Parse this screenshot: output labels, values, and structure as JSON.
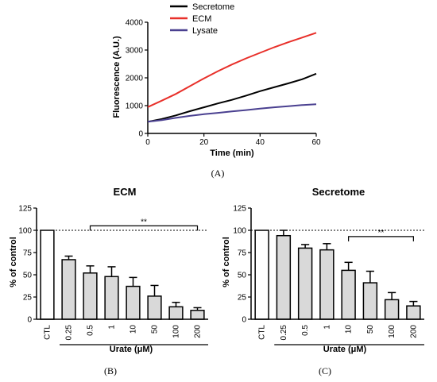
{
  "chart_data": [
    {
      "type": "line",
      "panel_label": "(A)",
      "xlabel": "Time (min)",
      "ylabel": "Fluorescence (A.U.)",
      "xlim": [
        0,
        60
      ],
      "ylim": [
        0,
        4000
      ],
      "xticks": [
        0,
        20,
        40,
        60
      ],
      "yticks": [
        0,
        1000,
        2000,
        3000,
        4000
      ],
      "legend_position": "top-left",
      "series": [
        {
          "name": "Secretome",
          "color": "#000000",
          "x": [
            0,
            5,
            10,
            15,
            20,
            25,
            30,
            35,
            40,
            45,
            50,
            55,
            60
          ],
          "y": [
            420,
            520,
            650,
            800,
            940,
            1080,
            1210,
            1360,
            1520,
            1660,
            1800,
            1950,
            2150
          ]
        },
        {
          "name": "ECM",
          "color": "#e8302a",
          "x": [
            0,
            5,
            10,
            15,
            20,
            25,
            30,
            35,
            40,
            45,
            50,
            55,
            60
          ],
          "y": [
            950,
            1180,
            1420,
            1700,
            1980,
            2240,
            2480,
            2700,
            2900,
            3100,
            3280,
            3450,
            3620
          ]
        },
        {
          "name": "Lysate",
          "color": "#4a4090",
          "x": [
            0,
            5,
            10,
            15,
            20,
            25,
            30,
            35,
            40,
            45,
            50,
            55,
            60
          ],
          "y": [
            420,
            480,
            560,
            630,
            690,
            740,
            790,
            840,
            890,
            940,
            980,
            1020,
            1050
          ]
        }
      ]
    },
    {
      "type": "bar",
      "panel_label": "(B)",
      "title": "ECM",
      "ylabel": "% of control",
      "xlabel": "Urate (μM)",
      "ylim": [
        0,
        125
      ],
      "yticks": [
        0,
        25,
        50,
        75,
        100,
        125
      ],
      "reference_line": 100,
      "categories": [
        "CTL",
        "0.25",
        "0.5",
        "1",
        "10",
        "50",
        "100",
        "200"
      ],
      "values": [
        100,
        67,
        52,
        48,
        37,
        26,
        14,
        10
      ],
      "errors": [
        0,
        4,
        8,
        11,
        10,
        12,
        5,
        3
      ],
      "significance": {
        "label": "**",
        "from": "0.5",
        "to": "200",
        "level": 105
      },
      "bar_colors": {
        "control": "#ffffff",
        "treated": "#d9d9d9"
      }
    },
    {
      "type": "bar",
      "panel_label": "(C)",
      "title": "Secretome",
      "ylabel": "% of control",
      "xlabel": "Urate (μM)",
      "ylim": [
        0,
        125
      ],
      "yticks": [
        0,
        25,
        50,
        75,
        100,
        125
      ],
      "reference_line": 100,
      "categories": [
        "CTL",
        "0.25",
        "0.5",
        "1",
        "10",
        "50",
        "100",
        "200"
      ],
      "values": [
        100,
        94,
        80,
        78,
        55,
        41,
        22,
        15
      ],
      "errors": [
        0,
        6,
        4,
        7,
        9,
        13,
        8,
        5
      ],
      "significance": {
        "label": "**",
        "from": "10",
        "to": "200",
        "level": 93
      },
      "bar_colors": {
        "control": "#ffffff",
        "treated": "#d9d9d9"
      }
    }
  ]
}
